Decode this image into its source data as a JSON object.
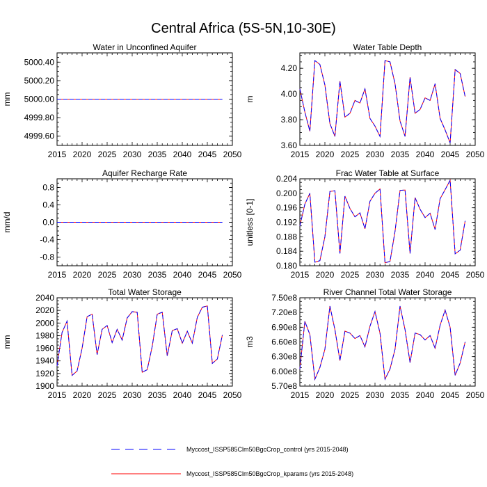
{
  "page": {
    "title": "Central Africa (5S-5N,10-30E)"
  },
  "legend": {
    "items": [
      {
        "label": "Myccost_ISSP585Clm50BgcCrop_control (yrs 2015-2048)",
        "color": "#0000ff",
        "dash": true
      },
      {
        "label": "Myccost_ISSP585Clm50BgcCrop_kparams (yrs 2015-2048)",
        "color": "#ff0000",
        "dash": false
      }
    ]
  },
  "chart_data": [
    {
      "type": "line",
      "title": "Water in Unconfined Aquifer",
      "ylabel": "mm",
      "xlim": [
        2015,
        2050
      ],
      "ylim": [
        4999.5,
        5000.5
      ],
      "xticks": [
        "2015",
        "2020",
        "2025",
        "2030",
        "2035",
        "2040",
        "2045",
        "2050"
      ],
      "yticks": [
        {
          "v": 4999.6,
          "label": "4999.60"
        },
        {
          "v": 4999.8,
          "label": "4999.80"
        },
        {
          "v": 5000.0,
          "label": "5000.00"
        },
        {
          "v": 5000.2,
          "label": "5000.20"
        },
        {
          "v": 5000.4,
          "label": "5000.40"
        }
      ],
      "x_start": 2015,
      "values": [
        5000,
        5000,
        5000,
        5000,
        5000,
        5000,
        5000,
        5000,
        5000,
        5000,
        5000,
        5000,
        5000,
        5000,
        5000,
        5000,
        5000,
        5000,
        5000,
        5000,
        5000,
        5000,
        5000,
        5000,
        5000,
        5000,
        5000,
        5000,
        5000,
        5000,
        5000,
        5000,
        5000,
        5000
      ]
    },
    {
      "type": "line",
      "title": "Water Table Depth",
      "ylabel": "m",
      "xlim": [
        2015,
        2050
      ],
      "ylim": [
        3.6,
        4.32
      ],
      "xticks": [
        "2015",
        "2020",
        "2025",
        "2030",
        "2035",
        "2040",
        "2045",
        "2050"
      ],
      "yticks": [
        {
          "v": 3.6,
          "label": "3.60"
        },
        {
          "v": 3.8,
          "label": "3.80"
        },
        {
          "v": 4.0,
          "label": "4.00"
        },
        {
          "v": 4.2,
          "label": "4.20"
        }
      ],
      "x_start": 2015,
      "values": [
        4.04,
        3.86,
        3.71,
        4.26,
        4.23,
        4.07,
        3.77,
        3.67,
        4.1,
        3.82,
        3.85,
        3.95,
        3.93,
        4.04,
        3.81,
        3.75,
        3.67,
        4.26,
        4.25,
        4.08,
        3.79,
        3.67,
        4.13,
        3.85,
        3.88,
        3.97,
        3.95,
        4.08,
        3.81,
        3.72,
        3.62,
        4.19,
        4.16,
        3.98
      ]
    },
    {
      "type": "line",
      "title": "Aquifer Recharge Rate",
      "ylabel": "mm/d",
      "xlim": [
        2015,
        2050
      ],
      "ylim": [
        -1.0,
        1.0
      ],
      "xticks": [
        "2015",
        "2020",
        "2025",
        "2030",
        "2035",
        "2040",
        "2045",
        "2050"
      ],
      "yticks": [
        {
          "v": -0.8,
          "label": "-0.8"
        },
        {
          "v": -0.4,
          "label": "-0.4"
        },
        {
          "v": 0.0,
          "label": "0.0"
        },
        {
          "v": 0.4,
          "label": "0.4"
        },
        {
          "v": 0.8,
          "label": "0.8"
        }
      ],
      "x_start": 2015,
      "values": [
        0,
        0,
        0,
        0,
        0,
        0,
        0,
        0,
        0,
        0,
        0,
        0,
        0,
        0,
        0,
        0,
        0,
        0,
        0,
        0,
        0,
        0,
        0,
        0,
        0,
        0,
        0,
        0,
        0,
        0,
        0,
        0,
        0,
        0
      ]
    },
    {
      "type": "line",
      "title": "Frac Water Table at Surface",
      "ylabel": "unitless [0-1]",
      "xlim": [
        2015,
        2050
      ],
      "ylim": [
        0.18,
        0.204
      ],
      "xticks": [
        "2015",
        "2020",
        "2025",
        "2030",
        "2035",
        "2040",
        "2045",
        "2050"
      ],
      "yticks": [
        {
          "v": 0.18,
          "label": "0.180"
        },
        {
          "v": 0.184,
          "label": "0.184"
        },
        {
          "v": 0.188,
          "label": "0.188"
        },
        {
          "v": 0.192,
          "label": "0.192"
        },
        {
          "v": 0.196,
          "label": "0.196"
        },
        {
          "v": 0.2,
          "label": "0.200"
        },
        {
          "v": 0.204,
          "label": "0.204"
        }
      ],
      "x_start": 2015,
      "values": [
        0.191,
        0.197,
        0.2,
        0.181,
        0.1814,
        0.188,
        0.2005,
        0.2007,
        0.1834,
        0.1992,
        0.1958,
        0.1935,
        0.1946,
        0.1902,
        0.1978,
        0.2,
        0.2012,
        0.1808,
        0.1812,
        0.1895,
        0.2008,
        0.2009,
        0.1834,
        0.1988,
        0.1956,
        0.1933,
        0.1945,
        0.19,
        0.1985,
        0.201,
        0.2036,
        0.1833,
        0.1843,
        0.1924
      ]
    },
    {
      "type": "line",
      "title": "Total Water Storage",
      "ylabel": "mm",
      "xlim": [
        2015,
        2050
      ],
      "ylim": [
        1900,
        2040
      ],
      "xticks": [
        "2015",
        "2020",
        "2025",
        "2030",
        "2035",
        "2040",
        "2045",
        "2050"
      ],
      "yticks": [
        {
          "v": 1900,
          "label": "1900"
        },
        {
          "v": 1920,
          "label": "1920"
        },
        {
          "v": 1940,
          "label": "1940"
        },
        {
          "v": 1960,
          "label": "1960"
        },
        {
          "v": 1980,
          "label": "1980"
        },
        {
          "v": 2000,
          "label": "2000"
        },
        {
          "v": 2020,
          "label": "2020"
        },
        {
          "v": 2040,
          "label": "2040"
        }
      ],
      "x_start": 2015,
      "values": [
        1932,
        1985,
        2003,
        1917,
        1924,
        1960,
        2010,
        2014,
        1950,
        1990,
        1996,
        1969,
        1990,
        1973,
        2008,
        2018,
        2017,
        1922,
        1926,
        1963,
        2014,
        2017,
        1948,
        1988,
        1991,
        1968,
        1987,
        1968,
        2009,
        2025,
        2027,
        1936,
        1943,
        1981
      ]
    },
    {
      "type": "line",
      "title": "River Channel Total Water Storage",
      "ylabel": "m3",
      "xlim": [
        2015,
        2050
      ],
      "ylim": [
        570000000.0,
        750000000.0
      ],
      "xticks": [
        "2015",
        "2020",
        "2025",
        "2030",
        "2035",
        "2040",
        "2045",
        "2050"
      ],
      "yticks": [
        {
          "v": 570000000.0,
          "label": "5.70e8"
        },
        {
          "v": 600000000.0,
          "label": "6.00e8"
        },
        {
          "v": 630000000.0,
          "label": "6.30e8"
        },
        {
          "v": 660000000.0,
          "label": "6.60e8"
        },
        {
          "v": 690000000.0,
          "label": "6.90e8"
        },
        {
          "v": 720000000.0,
          "label": "7.20e8"
        },
        {
          "v": 750000000.0,
          "label": "7.50e8"
        }
      ],
      "x_start": 2015,
      "values": [
        605000000.0,
        702000000.0,
        675000000.0,
        584000000.0,
        608000000.0,
        645000000.0,
        733000000.0,
        685000000.0,
        622000000.0,
        682000000.0,
        678000000.0,
        667000000.0,
        673000000.0,
        650000000.0,
        692000000.0,
        722000000.0,
        678000000.0,
        584000000.0,
        605000000.0,
        645000000.0,
        733000000.0,
        685000000.0,
        618000000.0,
        678000000.0,
        675000000.0,
        664000000.0,
        673000000.0,
        647000000.0,
        694000000.0,
        725000000.0,
        690000000.0,
        592000000.0,
        617000000.0,
        660000000.0
      ]
    }
  ]
}
